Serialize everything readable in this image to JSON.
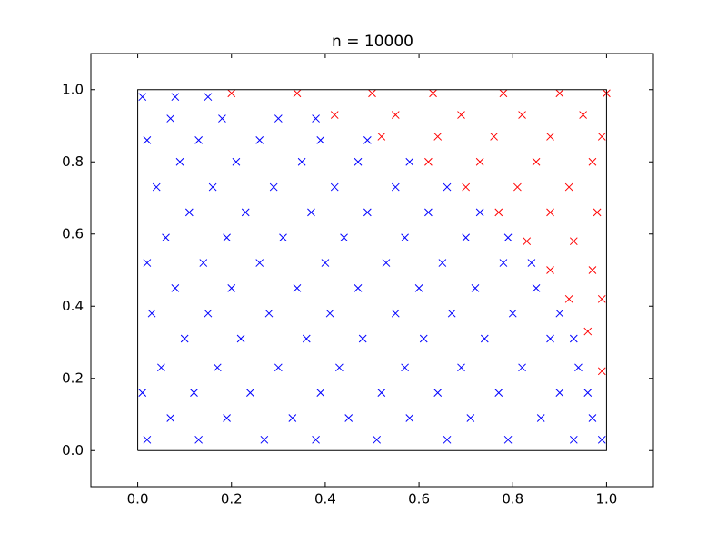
{
  "chart_data": {
    "type": "scatter",
    "title": "n = 10000",
    "xlim": [
      -0.1,
      1.1
    ],
    "ylim": [
      -0.1,
      1.1
    ],
    "xticks": [
      {
        "value": 0,
        "label": "0.0"
      },
      {
        "value": 0.2,
        "label": "0.2"
      },
      {
        "value": 0.4,
        "label": "0.4"
      },
      {
        "value": 0.6,
        "label": "0.6"
      },
      {
        "value": 0.8,
        "label": "0.8"
      },
      {
        "value": 1,
        "label": "1.0"
      }
    ],
    "yticks": [
      {
        "value": 0,
        "label": "0.0"
      },
      {
        "value": 0.2,
        "label": "0.2"
      },
      {
        "value": 0.4,
        "label": "0.4"
      },
      {
        "value": 0.6,
        "label": "0.6"
      },
      {
        "value": 0.8,
        "label": "0.8"
      },
      {
        "value": 1,
        "label": "1.0"
      }
    ],
    "series": [
      {
        "type": "scatter",
        "marker": "x",
        "color": "#0000ff",
        "x": [
          0.02,
          0.13,
          0.27,
          0.38,
          0.51,
          0.66,
          0.79,
          0.93,
          0.99,
          0.07,
          0.19,
          0.33,
          0.45,
          0.58,
          0.71,
          0.86,
          0.97,
          0.01,
          0.12,
          0.24,
          0.39,
          0.52,
          0.64,
          0.77,
          0.9,
          0.96,
          0.05,
          0.17,
          0.3,
          0.43,
          0.57,
          0.69,
          0.82,
          0.94,
          0.1,
          0.22,
          0.36,
          0.48,
          0.61,
          0.74,
          0.88,
          0.93,
          0.03,
          0.15,
          0.28,
          0.41,
          0.55,
          0.67,
          0.8,
          0.9,
          0.08,
          0.2,
          0.34,
          0.47,
          0.6,
          0.72,
          0.85,
          0.02,
          0.14,
          0.26,
          0.4,
          0.53,
          0.65,
          0.78,
          0.84,
          0.06,
          0.19,
          0.31,
          0.44,
          0.57,
          0.7,
          0.79,
          0.11,
          0.23,
          0.37,
          0.49,
          0.62,
          0.73,
          0.04,
          0.16,
          0.29,
          0.42,
          0.55,
          0.66,
          0.09,
          0.21,
          0.35,
          0.47,
          0.58,
          0.02,
          0.13,
          0.26,
          0.39,
          0.49,
          0.07,
          0.18,
          0.3,
          0.38,
          0.01,
          0.08,
          0.15
        ],
        "values": [
          0.03,
          0.03,
          0.03,
          0.03,
          0.03,
          0.03,
          0.03,
          0.03,
          0.03,
          0.09,
          0.09,
          0.09,
          0.09,
          0.09,
          0.09,
          0.09,
          0.09,
          0.16,
          0.16,
          0.16,
          0.16,
          0.16,
          0.16,
          0.16,
          0.16,
          0.16,
          0.23,
          0.23,
          0.23,
          0.23,
          0.23,
          0.23,
          0.23,
          0.23,
          0.31,
          0.31,
          0.31,
          0.31,
          0.31,
          0.31,
          0.31,
          0.31,
          0.38,
          0.38,
          0.38,
          0.38,
          0.38,
          0.38,
          0.38,
          0.38,
          0.45,
          0.45,
          0.45,
          0.45,
          0.45,
          0.45,
          0.45,
          0.52,
          0.52,
          0.52,
          0.52,
          0.52,
          0.52,
          0.52,
          0.52,
          0.59,
          0.59,
          0.59,
          0.59,
          0.59,
          0.59,
          0.59,
          0.66,
          0.66,
          0.66,
          0.66,
          0.66,
          0.66,
          0.73,
          0.73,
          0.73,
          0.73,
          0.73,
          0.73,
          0.8,
          0.8,
          0.8,
          0.8,
          0.8,
          0.86,
          0.86,
          0.86,
          0.86,
          0.86,
          0.92,
          0.92,
          0.92,
          0.92,
          0.98,
          0.98,
          0.98
        ]
      },
      {
        "type": "scatter",
        "marker": "x",
        "color": "#ff0000",
        "x": [
          0.2,
          0.34,
          0.5,
          0.63,
          0.78,
          0.9,
          1.0,
          0.42,
          0.55,
          0.69,
          0.82,
          0.95,
          0.52,
          0.64,
          0.76,
          0.88,
          0.99,
          0.62,
          0.73,
          0.85,
          0.97,
          0.7,
          0.81,
          0.92,
          0.77,
          0.88,
          0.98,
          0.83,
          0.93,
          0.88,
          0.97,
          0.92,
          0.99,
          0.96,
          0.99
        ],
        "values": [
          0.99,
          0.99,
          0.99,
          0.99,
          0.99,
          0.99,
          0.99,
          0.93,
          0.93,
          0.93,
          0.93,
          0.93,
          0.87,
          0.87,
          0.87,
          0.87,
          0.87,
          0.8,
          0.8,
          0.8,
          0.8,
          0.73,
          0.73,
          0.73,
          0.66,
          0.66,
          0.66,
          0.58,
          0.58,
          0.5,
          0.5,
          0.42,
          0.42,
          0.33,
          0.22
        ]
      },
      {
        "type": "line",
        "color": "#000000",
        "x": [
          0,
          1,
          1,
          0,
          0
        ],
        "values": [
          0,
          0,
          1,
          1,
          0
        ]
      }
    ]
  }
}
